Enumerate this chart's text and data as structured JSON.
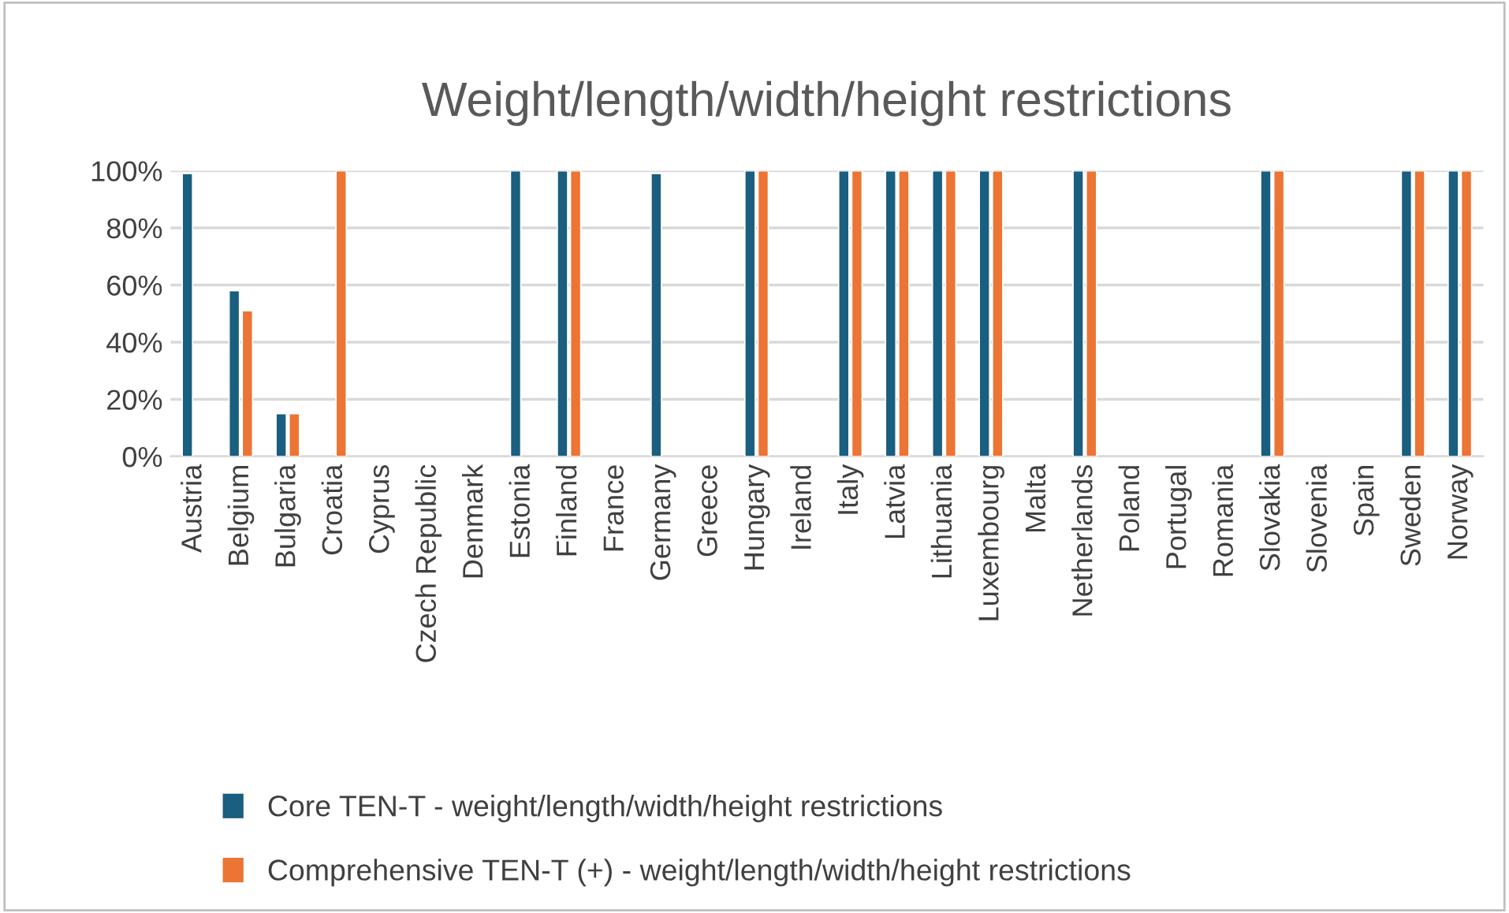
{
  "chart_data": {
    "type": "bar",
    "title": "Weight/length/width/height restrictions",
    "categories": [
      "Austria",
      "Belgium",
      "Bulgaria",
      "Croatia",
      "Cyprus",
      "Czech Republic",
      "Denmark",
      "Estonia",
      "Finland",
      "France",
      "Germany",
      "Greece",
      "Hungary",
      "Ireland",
      "Italy",
      "Latvia",
      "Lithuania",
      "Luxembourg",
      "Malta",
      "Netherlands",
      "Poland",
      "Portugal",
      "Romania",
      "Slovakia",
      "Slovenia",
      "Spain",
      "Sweden",
      "Norway"
    ],
    "series": [
      {
        "name": "Core TEN-T - weight/length/width/height restrictions",
        "color": "#1a5e80",
        "values": [
          99,
          58,
          15,
          null,
          null,
          null,
          null,
          100,
          100,
          null,
          99,
          null,
          100,
          null,
          100,
          100,
          100,
          100,
          null,
          100,
          null,
          null,
          null,
          100,
          null,
          null,
          100,
          100
        ]
      },
      {
        "name": "Comprehensive TEN-T (+) - weight/length/width/height restrictions",
        "color": "#ec7434",
        "values": [
          null,
          51,
          15,
          100,
          null,
          null,
          null,
          null,
          100,
          null,
          null,
          null,
          100,
          null,
          100,
          100,
          100,
          100,
          null,
          100,
          null,
          null,
          null,
          100,
          null,
          null,
          100,
          100
        ]
      }
    ],
    "ylim": [
      0,
      100
    ],
    "yticks": [
      {
        "value": 0,
        "label": "0%"
      },
      {
        "value": 20,
        "label": "20%"
      },
      {
        "value": 40,
        "label": "40%"
      },
      {
        "value": 60,
        "label": "60%"
      },
      {
        "value": 80,
        "label": "80%"
      },
      {
        "value": 100,
        "label": "100%"
      }
    ],
    "grid": "y",
    "legend": "bottom"
  }
}
